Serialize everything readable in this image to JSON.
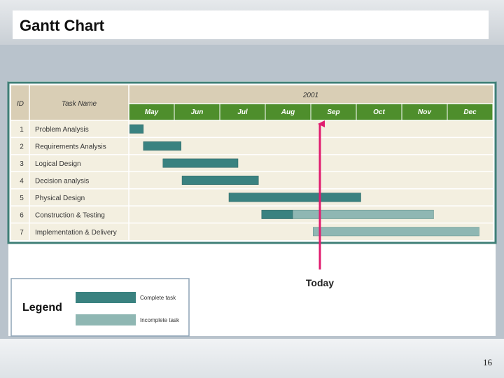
{
  "slide": {
    "title": "Gantt Chart",
    "page_number": "16"
  },
  "colors": {
    "complete": "#3a8280",
    "incomplete": "#8fb7b3",
    "header_bg": "#d9ceb5",
    "month_bg": "#4e8e2c",
    "row_bg": "#f3efe0",
    "frame": "#3f7f77",
    "today": "#e01c6f"
  },
  "chart_data": {
    "type": "gantt",
    "year": "2001",
    "columns": {
      "id": "ID",
      "task": "Task Name"
    },
    "months": [
      "May",
      "Jun",
      "Jul",
      "Aug",
      "Sep",
      "Oct",
      "Nov",
      "Dec"
    ],
    "tasks": [
      {
        "id": "1",
        "name": "Problem Analysis",
        "start": 0.02,
        "end": 0.32,
        "complete_until": 0.32
      },
      {
        "id": "2",
        "name": "Requirements Analysis",
        "start": 0.32,
        "end": 1.15,
        "complete_until": 1.15
      },
      {
        "id": "3",
        "name": "Logical Design",
        "start": 0.75,
        "end": 2.4,
        "complete_until": 2.4
      },
      {
        "id": "4",
        "name": "Decision analysis",
        "start": 1.17,
        "end": 2.85,
        "complete_until": 2.85
      },
      {
        "id": "5",
        "name": "Physical Design",
        "start": 2.2,
        "end": 5.1,
        "complete_until": 5.1
      },
      {
        "id": "6",
        "name": "Construction & Testing",
        "start": 2.92,
        "end": 6.7,
        "complete_until": 3.6
      },
      {
        "id": "7",
        "name": "Implementation & Delivery",
        "start": 4.05,
        "end": 7.7,
        "complete_until": 4.05
      }
    ],
    "today": 4.2,
    "today_label": "Today"
  },
  "legend": {
    "title": "Legend",
    "complete_label": "Complete task",
    "incomplete_label": "Incomplete task"
  }
}
